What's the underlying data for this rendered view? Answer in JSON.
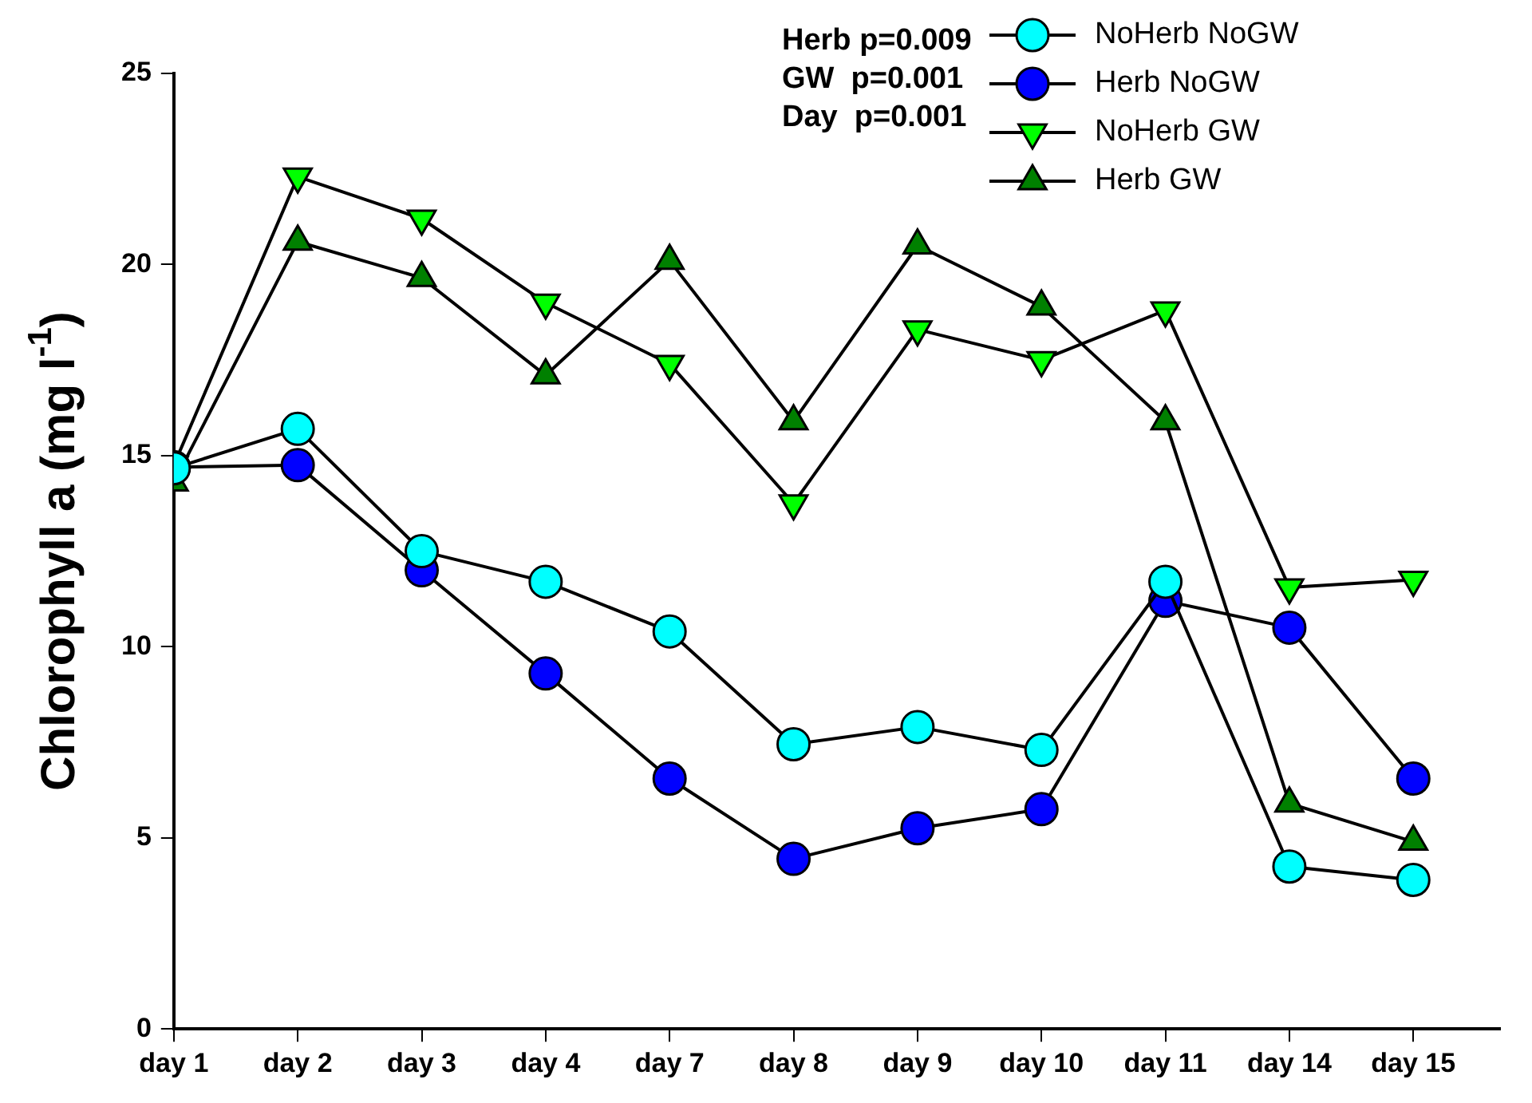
{
  "chart_data": {
    "type": "line",
    "ylabel": "Chlorophyll a (mg l$^{-1}$)",
    "categories": [
      "day 1",
      "day 2",
      "day 3",
      "day 4",
      "day 7",
      "day 8",
      "day 9",
      "day 10",
      "day 11",
      "day 14",
      "day 15"
    ],
    "ylim": [
      0,
      25
    ],
    "yticks": [
      0,
      5,
      10,
      15,
      20,
      25
    ],
    "grid": false,
    "legend": "top right",
    "line_style": "solid",
    "annotations": [
      "Herb p=0.009",
      "GW  p=0.001",
      "Day  p=0.001"
    ],
    "series": [
      {
        "name": "NoHerb NoGW",
        "color": "#00ffff",
        "marker": "circle",
        "values": [
          14.67,
          15.7,
          12.5,
          11.7,
          10.4,
          7.45,
          7.9,
          7.3,
          11.7,
          4.25,
          3.9
        ]
      },
      {
        "name": "Herb NoGW",
        "color": "#0000ff",
        "marker": "circle",
        "values": [
          14.7,
          14.75,
          12.0,
          9.3,
          6.55,
          4.45,
          5.25,
          5.75,
          11.2,
          10.5,
          6.55
        ]
      },
      {
        "name": "NoHerb GW",
        "color": "#00ff00",
        "marker": "triangle_down",
        "values": [
          14.75,
          22.3,
          21.2,
          19.0,
          17.4,
          13.75,
          18.3,
          17.5,
          18.8,
          11.55,
          11.75
        ]
      },
      {
        "name": "Herb GW",
        "color": "#008000",
        "marker": "triangle",
        "values": [
          14.3,
          20.6,
          19.65,
          17.1,
          20.1,
          15.9,
          20.5,
          18.9,
          15.9,
          5.9,
          4.9
        ]
      }
    ]
  }
}
